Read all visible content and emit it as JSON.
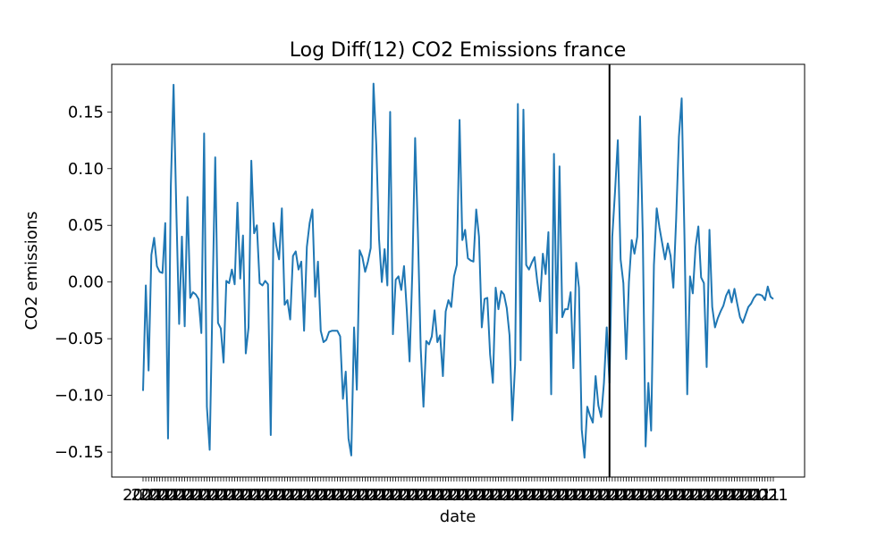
{
  "chart_data": {
    "type": "line",
    "title": "Log Diff(12) CO2 Emissions france",
    "xlabel": "date",
    "ylabel": "CO2 emissions",
    "ylim": [
      -0.172,
      0.192
    ],
    "y_ticks": [
      -0.15,
      -0.1,
      -0.05,
      0.0,
      0.05,
      0.1,
      0.15
    ],
    "y_tick_labels": [
      "−0.15",
      "−0.10",
      "−0.05",
      "0.00",
      "0.05",
      "0.10",
      "0.15"
    ],
    "x_tick_label_text": "2021",
    "grid": false,
    "vertical_line_index": 168,
    "series": [
      {
        "color": "#1f77b4",
        "values": [
          -0.096,
          -0.003,
          -0.078,
          0.024,
          0.039,
          0.014,
          0.009,
          0.008,
          0.052,
          -0.138,
          0.084,
          0.174,
          0.062,
          -0.037,
          0.04,
          -0.039,
          0.075,
          -0.014,
          -0.009,
          -0.011,
          -0.015,
          -0.045,
          0.131,
          -0.11,
          -0.148,
          -0.018,
          0.11,
          -0.036,
          -0.041,
          -0.071,
          0.001,
          -0.001,
          0.011,
          -0.002,
          0.07,
          0.003,
          0.041,
          -0.063,
          -0.04,
          0.107,
          0.043,
          0.05,
          -0.001,
          -0.003,
          0.001,
          -0.002,
          -0.135,
          0.052,
          0.032,
          0.02,
          0.065,
          -0.02,
          -0.016,
          -0.033,
          0.023,
          0.027,
          0.011,
          0.018,
          -0.043,
          0.031,
          0.052,
          0.064,
          -0.013,
          0.018,
          -0.043,
          -0.053,
          -0.051,
          -0.044,
          -0.043,
          -0.043,
          -0.043,
          -0.048,
          -0.103,
          -0.079,
          -0.138,
          -0.153,
          -0.04,
          -0.095,
          0.028,
          0.022,
          0.009,
          0.018,
          0.03,
          0.175,
          0.121,
          0.038,
          -0.0,
          0.029,
          -0.003,
          0.15,
          -0.046,
          0.002,
          0.005,
          -0.007,
          0.014,
          -0.025,
          -0.07,
          0.01,
          0.127,
          0.043,
          -0.058,
          -0.11,
          -0.052,
          -0.055,
          -0.048,
          -0.025,
          -0.053,
          -0.047,
          -0.083,
          -0.026,
          -0.016,
          -0.022,
          0.005,
          0.015,
          0.143,
          0.037,
          0.046,
          0.021,
          0.019,
          0.018,
          0.064,
          0.04,
          -0.04,
          -0.015,
          -0.014,
          -0.064,
          -0.089,
          -0.005,
          -0.024,
          -0.008,
          -0.011,
          -0.023,
          -0.047,
          -0.122,
          -0.073,
          0.157,
          -0.069,
          0.152,
          0.015,
          0.011,
          0.017,
          0.022,
          0.0,
          -0.017,
          0.025,
          0.007,
          0.044,
          -0.099,
          0.113,
          -0.045,
          0.102,
          -0.031,
          -0.024,
          -0.024,
          -0.009,
          -0.076,
          0.017,
          -0.005,
          -0.13,
          -0.155,
          -0.11,
          -0.118,
          -0.124,
          -0.083,
          -0.109,
          -0.119,
          -0.089,
          -0.04,
          -0.089,
          0.04,
          0.08,
          0.125,
          0.02,
          -0.001,
          -0.068,
          0.0,
          0.037,
          0.025,
          0.04,
          0.146,
          0.04,
          -0.145,
          -0.089,
          -0.131,
          0.015,
          0.065,
          0.048,
          0.034,
          0.02,
          0.034,
          0.023,
          -0.005,
          0.055,
          0.128,
          0.162,
          0.04,
          -0.099,
          0.005,
          -0.01,
          0.031,
          0.049,
          0.004,
          -0.001,
          -0.075,
          0.046,
          -0.022,
          -0.04,
          -0.032,
          -0.026,
          -0.021,
          -0.012,
          -0.007,
          -0.018,
          -0.006,
          -0.019,
          -0.031,
          -0.036,
          -0.029,
          -0.022,
          -0.019,
          -0.014,
          -0.011,
          -0.011,
          -0.012,
          -0.016,
          -0.004,
          -0.013,
          -0.015
        ]
      }
    ]
  }
}
